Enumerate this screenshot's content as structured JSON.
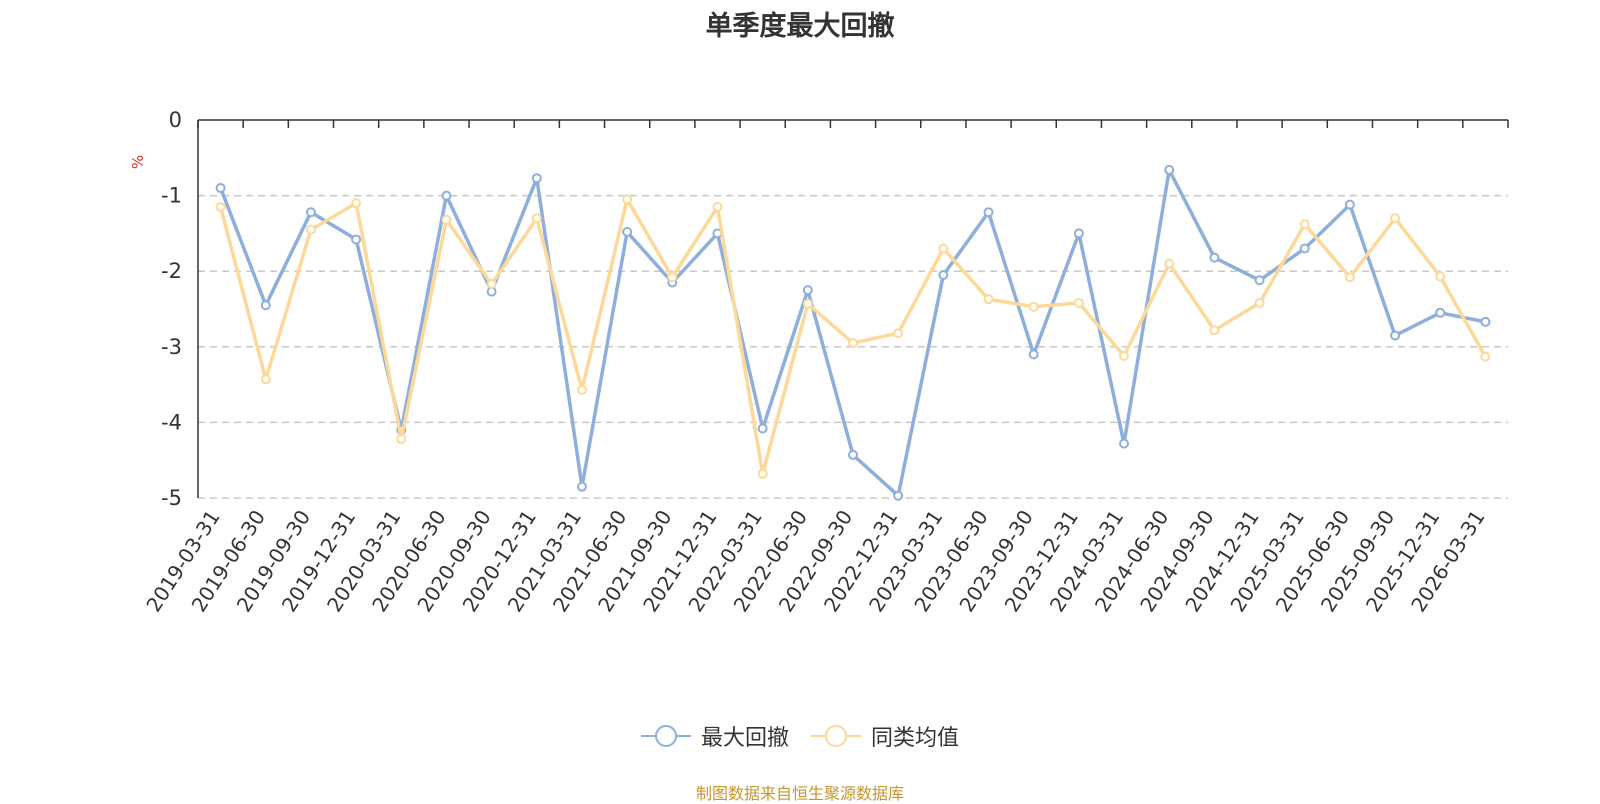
{
  "page": {
    "title": "单季度最大回撤",
    "source": "制图数据来自恒生聚源数据库"
  },
  "chart_data": {
    "type": "line",
    "title": "单季度最大回撤",
    "ylabel": "%",
    "ylim": [
      -5,
      0
    ],
    "yticks": [
      0,
      -1,
      -2,
      -3,
      -4,
      -5
    ],
    "grid": true,
    "legend_position": "bottom",
    "categories": [
      "2019-03-31",
      "2019-06-30",
      "2019-09-30",
      "2019-12-31",
      "2020-03-31",
      "2020-06-30",
      "2020-09-30",
      "2020-12-31",
      "2021-03-31",
      "2021-06-30",
      "2021-09-30",
      "2021-12-31",
      "2022-03-31",
      "2022-06-30",
      "2022-09-30",
      "2022-12-31",
      "2023-03-31",
      "2023-06-30",
      "2023-09-30",
      "2023-12-31",
      "2024-03-31",
      "2024-06-30",
      "2024-09-30",
      "2024-12-31",
      "2025-03-31",
      "2025-06-30",
      "2025-09-30",
      "2025-12-31",
      "2026-03-31"
    ],
    "series": [
      {
        "name": "最大回撤",
        "color": "#8eaedb",
        "values": [
          -0.9,
          -2.45,
          -1.22,
          -1.58,
          -4.1,
          -1.0,
          -2.27,
          -0.77,
          -4.85,
          -1.48,
          -2.15,
          -1.5,
          -4.08,
          -2.25,
          -4.43,
          -4.97,
          -2.05,
          -1.22,
          -3.1,
          -1.5,
          -4.28,
          -0.66,
          -1.82,
          -2.12,
          -1.7,
          -1.12,
          -2.85,
          -2.55,
          -2.67
        ]
      },
      {
        "name": "同类均值",
        "color": "#fcd999",
        "values": [
          -1.15,
          -3.43,
          -1.45,
          -1.1,
          -4.22,
          -1.32,
          -2.17,
          -1.3,
          -3.57,
          -1.05,
          -2.08,
          -1.15,
          -4.68,
          -2.43,
          -2.95,
          -2.82,
          -1.7,
          -2.37,
          -2.47,
          -2.42,
          -3.12,
          -1.9,
          -2.78,
          -2.42,
          -1.38,
          -2.08,
          -1.3,
          -2.07,
          -3.13
        ]
      }
    ]
  }
}
